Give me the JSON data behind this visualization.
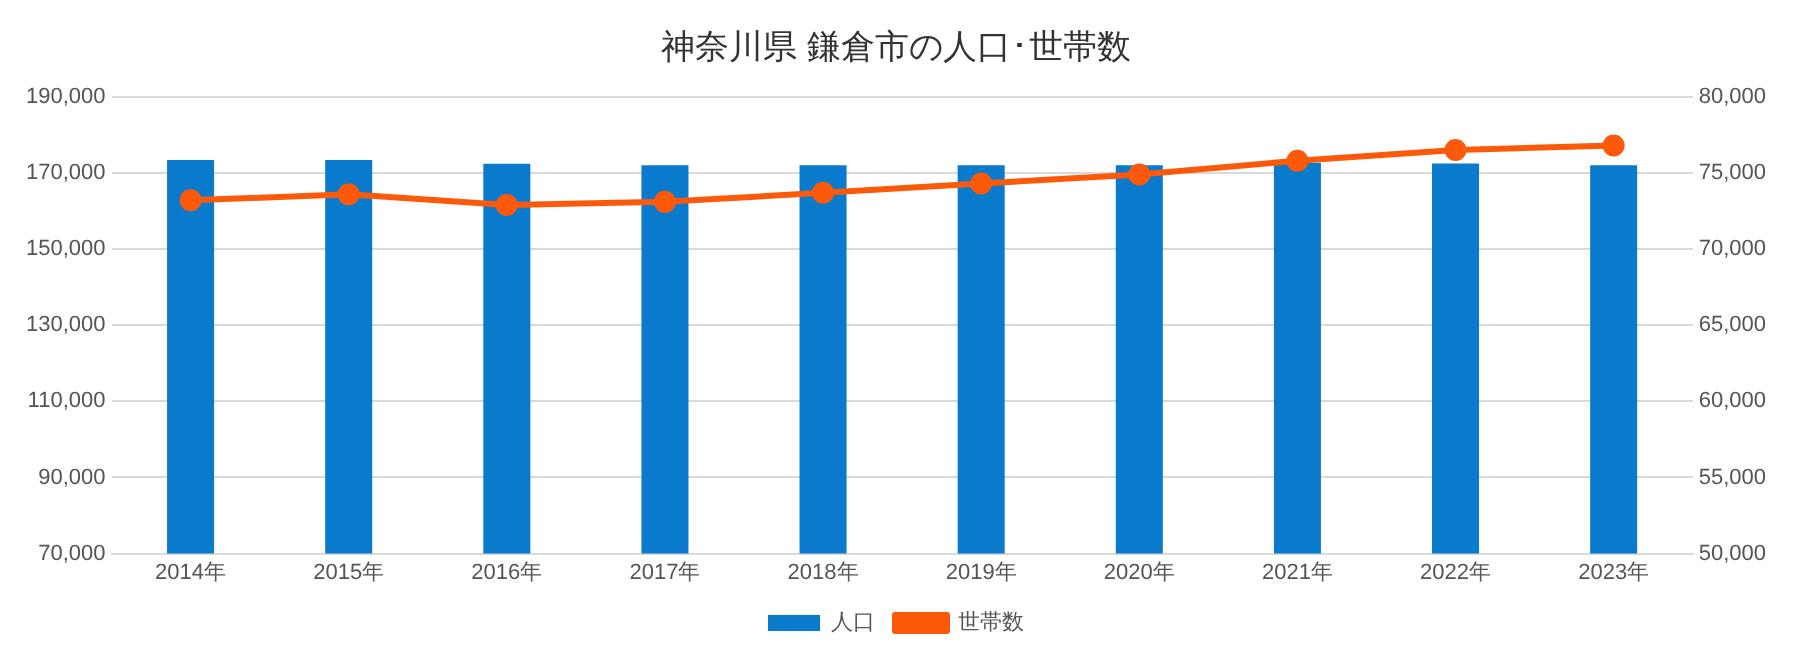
{
  "chart_data": {
    "type": "bar",
    "title": "神奈川県 鎌倉市の人口･世帯数",
    "categories": [
      "2014年",
      "2015年",
      "2016年",
      "2017年",
      "2018年",
      "2019年",
      "2020年",
      "2021年",
      "2022年",
      "2023年"
    ],
    "series": [
      {
        "name": "人口",
        "color": "#0a7acc",
        "values": [
          173400,
          173400,
          172400,
          172000,
          172000,
          172000,
          172000,
          172700,
          172500,
          172000
        ]
      },
      {
        "name": "世帯数",
        "type": "line",
        "axis": "y2",
        "color": "#fc5a0a",
        "marker": "circle",
        "values": [
          73200,
          73600,
          72900,
          73100,
          73700,
          74300,
          74900,
          75800,
          76500,
          76800
        ]
      }
    ],
    "ylim": [
      70000,
      190000
    ],
    "yticks": [
      {
        "value": 70000,
        "label": "70,000"
      },
      {
        "value": 90000,
        "label": "90,000"
      },
      {
        "value": 110000,
        "label": "110,000"
      },
      {
        "value": 130000,
        "label": "130,000"
      },
      {
        "value": 150000,
        "label": "150,000"
      },
      {
        "value": 170000,
        "label": "170,000"
      },
      {
        "value": 190000,
        "label": "190,000"
      }
    ],
    "y2lim": [
      50000,
      80000
    ],
    "y2ticks": [
      {
        "value": 50000,
        "label": "50,000"
      },
      {
        "value": 55000,
        "label": "55,000"
      },
      {
        "value": 60000,
        "label": "60,000"
      },
      {
        "value": 65000,
        "label": "65,000"
      },
      {
        "value": 70000,
        "label": "70,000"
      },
      {
        "value": 75000,
        "label": "75,000"
      },
      {
        "value": 80000,
        "label": "80,000"
      }
    ],
    "grid": "y",
    "legend": "bottom"
  }
}
